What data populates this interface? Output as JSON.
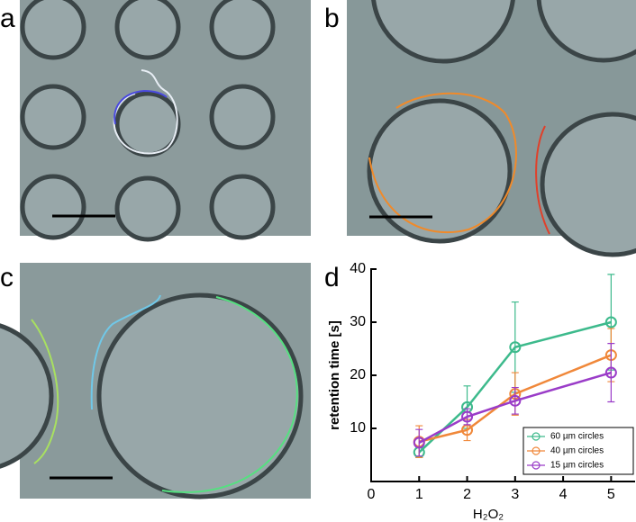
{
  "panel_labels": [
    "a",
    "b",
    "c",
    "d"
  ],
  "chart_data": {
    "type": "line",
    "x_label": "H₂O₂",
    "y_label": "retention time [s]",
    "x": [
      1,
      2,
      3,
      5
    ],
    "xlim": [
      0,
      5.5
    ],
    "xticks": [
      0,
      1,
      2,
      3,
      4,
      5
    ],
    "ylim": [
      0,
      40
    ],
    "yticks": [
      10,
      20,
      30,
      40
    ],
    "legend": "lower right",
    "series": [
      {
        "name": "60 µm circles",
        "color": "#3dba8c",
        "values": [
          5.5,
          14,
          25.3,
          30
        ],
        "errors": [
          1,
          4,
          8.5,
          9
        ]
      },
      {
        "name": "40 µm circles",
        "color": "#f0883a",
        "values": [
          7.5,
          9.7,
          16.5,
          23.8
        ],
        "errors": [
          3,
          2,
          4,
          5
        ]
      },
      {
        "name": "15 µm circles",
        "color": "#9a3cc8",
        "values": [
          7.3,
          12.2,
          15.2,
          20.5
        ],
        "errors": [
          2.5,
          1.5,
          2.5,
          5.5
        ]
      }
    ]
  }
}
